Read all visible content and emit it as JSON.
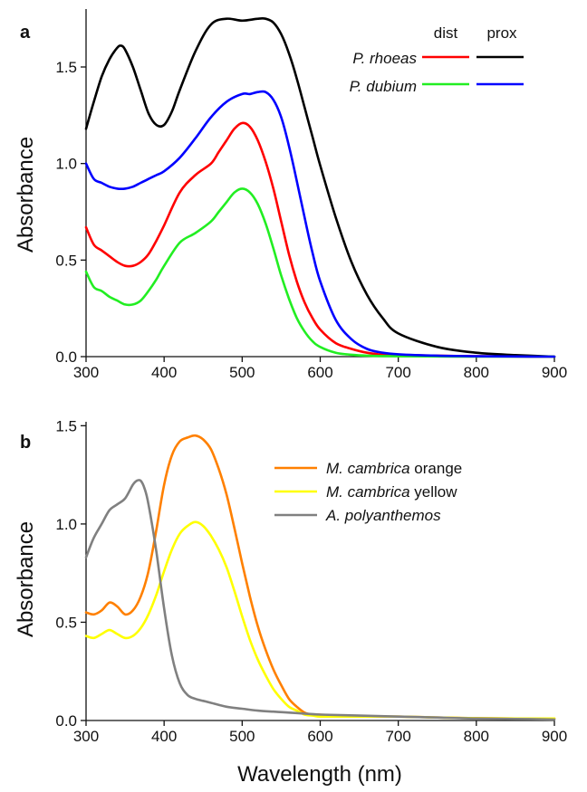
{
  "chart_data": [
    {
      "type": "line",
      "panel": "a",
      "xlabel": "",
      "ylabel": "Absorbance",
      "xlim": [
        300,
        900
      ],
      "ylim": [
        0,
        1.8
      ],
      "xticks": [
        "300",
        "400",
        "500",
        "600",
        "700",
        "800",
        "900"
      ],
      "yticks": [
        "0.0",
        "0.5",
        "1.0",
        "1.5"
      ],
      "legend_headers": [
        "dist",
        "prox"
      ],
      "legend_rows": [
        "P. rhoeas",
        "P. dubium"
      ],
      "series": [
        {
          "name": "P. rhoeas dist",
          "color": "#ff0000",
          "x": [
            300,
            310,
            320,
            330,
            340,
            350,
            360,
            370,
            380,
            390,
            400,
            420,
            440,
            460,
            470,
            480,
            490,
            500,
            510,
            520,
            530,
            540,
            550,
            560,
            570,
            580,
            590,
            600,
            620,
            640,
            660,
            680,
            700,
            750,
            800,
            850,
            900
          ],
          "y": [
            0.67,
            0.58,
            0.55,
            0.52,
            0.49,
            0.47,
            0.47,
            0.49,
            0.53,
            0.6,
            0.68,
            0.85,
            0.94,
            1.0,
            1.06,
            1.12,
            1.18,
            1.21,
            1.19,
            1.12,
            1.01,
            0.87,
            0.7,
            0.53,
            0.39,
            0.28,
            0.2,
            0.14,
            0.07,
            0.04,
            0.02,
            0.01,
            0.008,
            0.005,
            0.002,
            0.001,
            0.0
          ]
        },
        {
          "name": "P. rhoeas prox",
          "color": "#000000",
          "x": [
            300,
            310,
            320,
            330,
            340,
            345,
            350,
            360,
            370,
            380,
            390,
            400,
            410,
            420,
            440,
            460,
            480,
            500,
            520,
            530,
            540,
            550,
            560,
            570,
            580,
            590,
            600,
            620,
            640,
            660,
            680,
            700,
            750,
            800,
            850,
            900
          ],
          "y": [
            1.18,
            1.32,
            1.45,
            1.54,
            1.6,
            1.61,
            1.59,
            1.5,
            1.38,
            1.26,
            1.2,
            1.2,
            1.27,
            1.38,
            1.58,
            1.72,
            1.75,
            1.74,
            1.75,
            1.75,
            1.73,
            1.67,
            1.57,
            1.44,
            1.29,
            1.14,
            0.99,
            0.72,
            0.49,
            0.32,
            0.2,
            0.12,
            0.05,
            0.02,
            0.008,
            0.0
          ]
        },
        {
          "name": "P. dubium dist",
          "color": "#22ee22",
          "x": [
            300,
            310,
            320,
            330,
            340,
            350,
            360,
            370,
            380,
            390,
            400,
            420,
            440,
            460,
            470,
            480,
            490,
            500,
            510,
            520,
            530,
            540,
            550,
            560,
            570,
            580,
            590,
            600,
            620,
            640,
            660,
            680,
            700,
            750,
            800,
            850,
            900
          ],
          "y": [
            0.44,
            0.36,
            0.34,
            0.31,
            0.29,
            0.27,
            0.27,
            0.29,
            0.34,
            0.4,
            0.47,
            0.59,
            0.64,
            0.7,
            0.75,
            0.8,
            0.85,
            0.87,
            0.85,
            0.79,
            0.69,
            0.56,
            0.42,
            0.3,
            0.2,
            0.13,
            0.08,
            0.05,
            0.02,
            0.01,
            0.005,
            0.003,
            0.002,
            0.001,
            0.0,
            0.0,
            0.0
          ]
        },
        {
          "name": "P. dubium prox",
          "color": "#0000ff",
          "x": [
            300,
            310,
            320,
            330,
            340,
            350,
            360,
            370,
            380,
            390,
            400,
            420,
            440,
            460,
            480,
            500,
            510,
            520,
            530,
            540,
            550,
            560,
            570,
            580,
            590,
            600,
            620,
            640,
            660,
            680,
            700,
            750,
            800,
            850,
            900
          ],
          "y": [
            1.0,
            0.92,
            0.9,
            0.88,
            0.87,
            0.87,
            0.88,
            0.9,
            0.92,
            0.94,
            0.96,
            1.03,
            1.13,
            1.24,
            1.32,
            1.36,
            1.36,
            1.37,
            1.37,
            1.33,
            1.24,
            1.09,
            0.91,
            0.72,
            0.54,
            0.39,
            0.19,
            0.09,
            0.04,
            0.02,
            0.012,
            0.005,
            0.002,
            0.001,
            0.0
          ]
        }
      ]
    },
    {
      "type": "line",
      "panel": "b",
      "xlabel": "Wavelength (nm)",
      "ylabel": "Absorbance",
      "xlim": [
        300,
        900
      ],
      "ylim": [
        0,
        1.52
      ],
      "xticks": [
        "300",
        "400",
        "500",
        "600",
        "700",
        "800",
        "900"
      ],
      "yticks": [
        "0.0",
        "0.5",
        "1.0",
        "1.5"
      ],
      "series": [
        {
          "name": "M. cambrica orange",
          "name_italic": "M. cambrica",
          "name_plain": " orange",
          "color": "#ff8000",
          "x": [
            300,
            310,
            320,
            330,
            340,
            350,
            360,
            370,
            380,
            390,
            400,
            410,
            420,
            430,
            440,
            450,
            460,
            470,
            480,
            490,
            500,
            510,
            520,
            530,
            540,
            550,
            560,
            570,
            580,
            590,
            600,
            620,
            650,
            700,
            750,
            800,
            850,
            900
          ],
          "y": [
            0.55,
            0.54,
            0.56,
            0.6,
            0.58,
            0.54,
            0.56,
            0.63,
            0.76,
            0.97,
            1.2,
            1.35,
            1.42,
            1.44,
            1.45,
            1.43,
            1.38,
            1.28,
            1.15,
            0.98,
            0.8,
            0.63,
            0.48,
            0.36,
            0.26,
            0.18,
            0.11,
            0.07,
            0.04,
            0.03,
            0.03,
            0.025,
            0.02,
            0.02,
            0.015,
            0.012,
            0.01,
            0.01
          ]
        },
        {
          "name": "M. cambrica yellow",
          "name_italic": "M. cambrica",
          "name_plain": " yellow",
          "color": "#ffff00",
          "x": [
            300,
            310,
            320,
            330,
            340,
            350,
            360,
            370,
            380,
            390,
            400,
            410,
            420,
            430,
            440,
            450,
            460,
            470,
            480,
            490,
            500,
            510,
            520,
            530,
            540,
            550,
            560,
            570,
            580,
            590,
            600,
            620,
            650,
            700,
            750,
            800,
            850,
            900
          ],
          "y": [
            0.43,
            0.42,
            0.44,
            0.46,
            0.44,
            0.42,
            0.43,
            0.47,
            0.54,
            0.64,
            0.76,
            0.87,
            0.95,
            0.99,
            1.01,
            0.99,
            0.94,
            0.87,
            0.78,
            0.66,
            0.53,
            0.41,
            0.31,
            0.23,
            0.16,
            0.11,
            0.07,
            0.05,
            0.03,
            0.025,
            0.02,
            0.02,
            0.02,
            0.02,
            0.015,
            0.012,
            0.01,
            0.01
          ]
        },
        {
          "name": "A. polyanthemos",
          "name_italic": "A. polyanthemos",
          "name_plain": "",
          "color": "#808080",
          "x": [
            300,
            310,
            320,
            330,
            340,
            350,
            360,
            365,
            370,
            375,
            380,
            390,
            400,
            410,
            420,
            430,
            440,
            450,
            460,
            480,
            500,
            520,
            540,
            560,
            580,
            600,
            650,
            700,
            750,
            800,
            850,
            900
          ],
          "y": [
            0.83,
            0.93,
            1.0,
            1.07,
            1.1,
            1.13,
            1.2,
            1.22,
            1.22,
            1.18,
            1.1,
            0.86,
            0.57,
            0.33,
            0.19,
            0.13,
            0.11,
            0.1,
            0.09,
            0.07,
            0.06,
            0.05,
            0.045,
            0.04,
            0.035,
            0.03,
            0.025,
            0.02,
            0.015,
            0.01,
            0.008,
            0.005
          ]
        }
      ]
    }
  ]
}
